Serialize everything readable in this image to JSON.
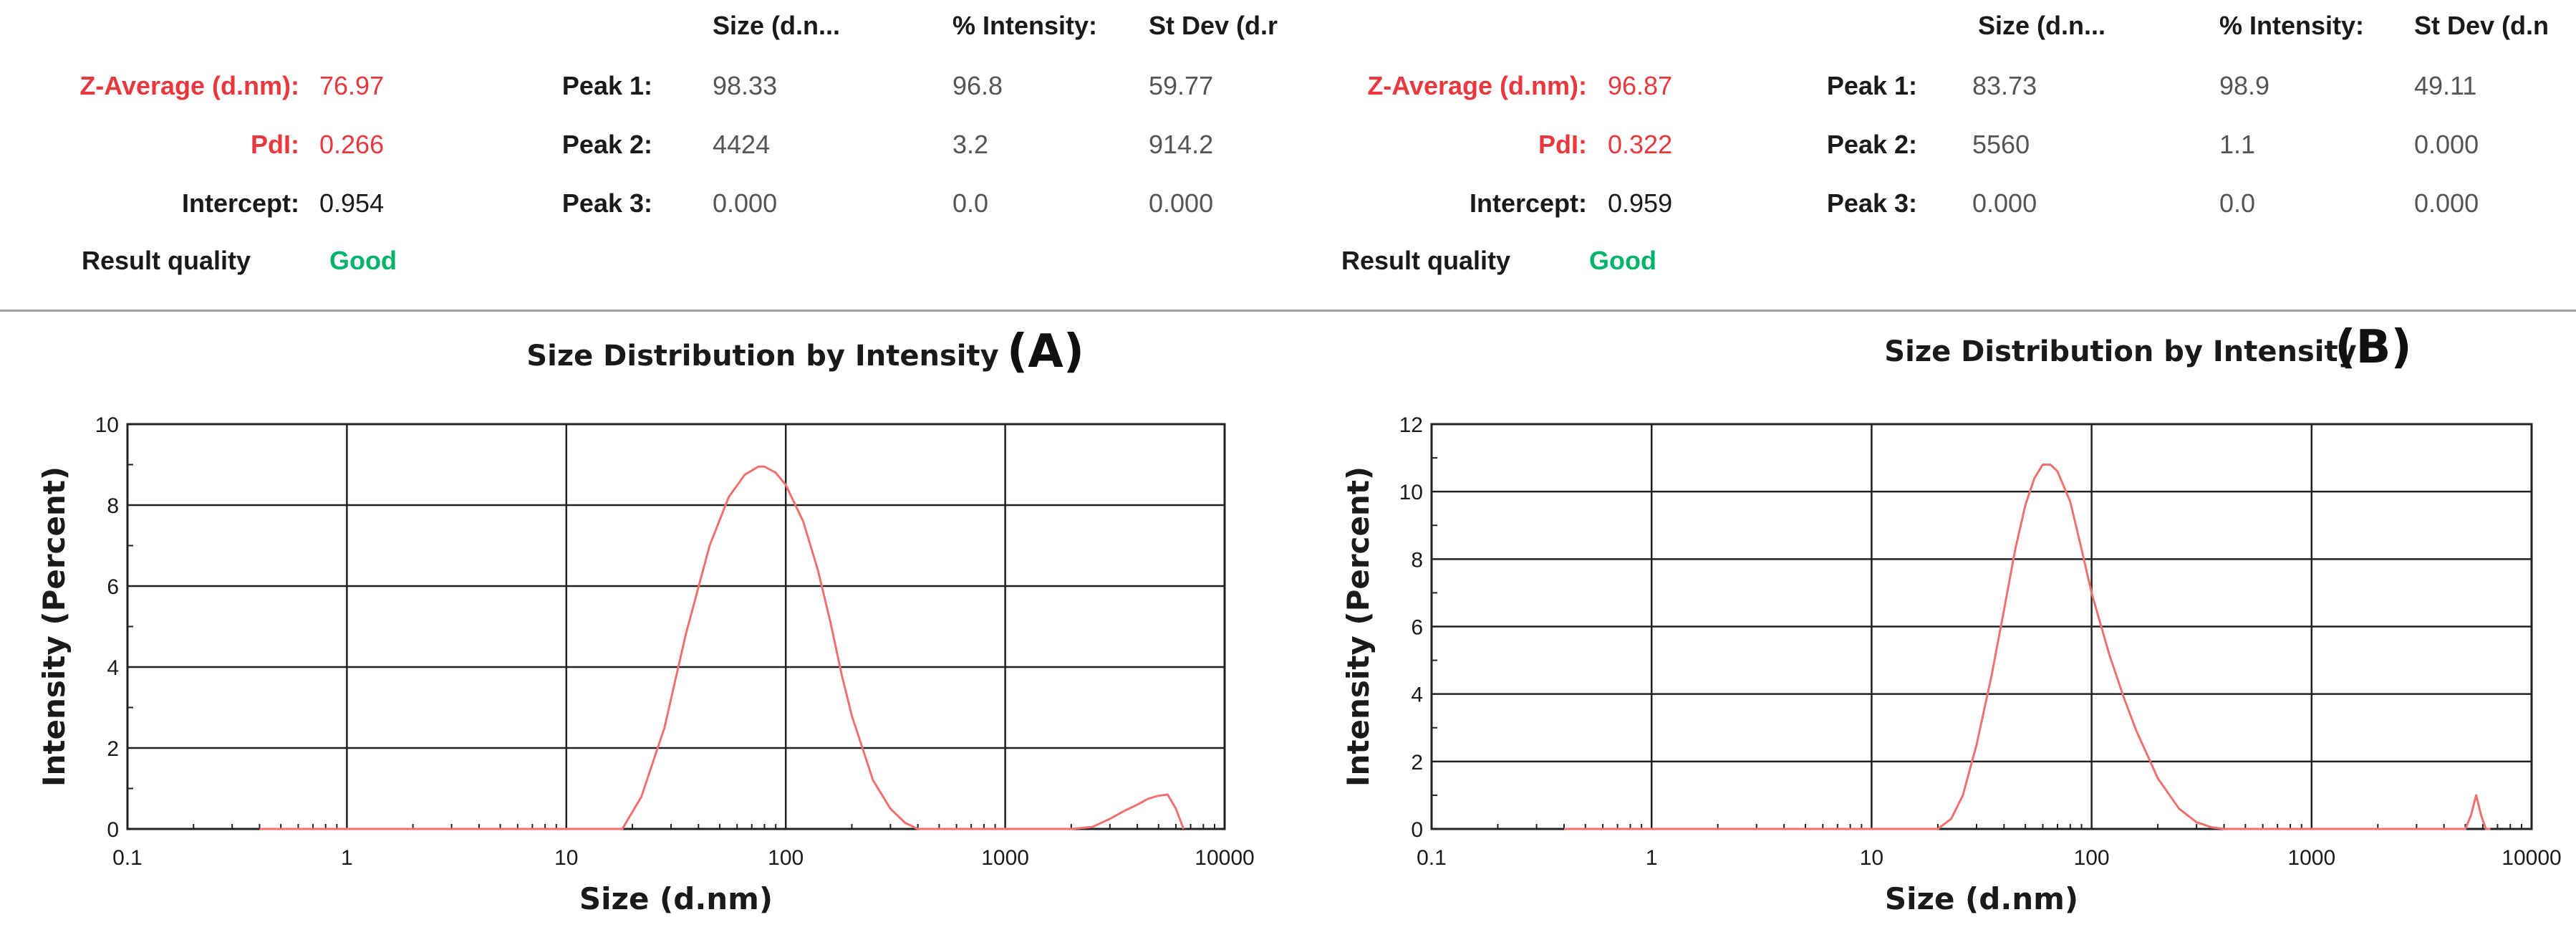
{
  "headers": {
    "size": "Size (d.n...",
    "intensity": "% Intensity:",
    "stdev_a": "St Dev (d.r",
    "stdev_b": "St Dev (d.n"
  },
  "labels": {
    "z_average": "Z-Average (d.nm):",
    "pdi": "PdI:",
    "intercept": "Intercept:",
    "result_quality": "Result quality",
    "peak1": "Peak 1:",
    "peak2": "Peak 2:",
    "peak3": "Peak 3:"
  },
  "results": [
    {
      "z_average": "76.97",
      "pdi": "0.266",
      "intercept": "0.954",
      "quality": "Good",
      "peaks": [
        {
          "size": "98.33",
          "intensity": "96.8",
          "stdev": "59.77"
        },
        {
          "size": "4424",
          "intensity": "3.2",
          "stdev": "914.2"
        },
        {
          "size": "0.000",
          "intensity": "0.0",
          "stdev": "0.000"
        }
      ]
    },
    {
      "z_average": "96.87",
      "pdi": "0.322",
      "intercept": "0.959",
      "quality": "Good",
      "peaks": [
        {
          "size": "83.73",
          "intensity": "98.9",
          "stdev": "49.11"
        },
        {
          "size": "5560",
          "intensity": "1.1",
          "stdev": "0.000"
        },
        {
          "size": "0.000",
          "intensity": "0.0",
          "stdev": "0.000"
        }
      ]
    }
  ],
  "colors": {
    "curve": "#f07070",
    "label_red": "#e8383d",
    "good": "#00b36b",
    "grid": "#222222"
  },
  "chart_data": [
    {
      "type": "line",
      "title": "Size Distribution by Intensity",
      "panel_letter": "(A)",
      "xlabel": "Size (d.nm)",
      "ylabel": "Intensity (Percent)",
      "xscale": "log",
      "xlim": [
        0.1,
        10000
      ],
      "ylim": [
        0,
        10
      ],
      "xticks": [
        0.1,
        1,
        10,
        100,
        1000,
        10000
      ],
      "xtick_labels": [
        "0.1",
        "1",
        "10",
        "100",
        "1000",
        "10000"
      ],
      "yticks": [
        0,
        2,
        4,
        6,
        8,
        10
      ],
      "ytick_labels": [
        "0",
        "2",
        "4",
        "6",
        "8",
        "10"
      ],
      "grid": true,
      "series": [
        {
          "x": [
            0.4,
            10,
            18,
            22,
            28,
            35,
            45,
            55,
            65,
            75,
            80,
            90,
            100,
            120,
            140,
            160,
            180,
            200,
            250,
            300,
            350,
            400,
            600,
            1000,
            2000,
            2500,
            3000,
            3500,
            4000,
            4500,
            5000,
            5500,
            6000,
            6500
          ],
          "y": [
            0,
            0,
            0,
            0.8,
            2.5,
            4.8,
            7.0,
            8.2,
            8.75,
            8.95,
            8.95,
            8.8,
            8.5,
            7.6,
            6.4,
            5.1,
            3.8,
            2.8,
            1.2,
            0.5,
            0.15,
            0,
            0,
            0,
            0,
            0.05,
            0.25,
            0.45,
            0.6,
            0.75,
            0.82,
            0.85,
            0.5,
            0
          ]
        }
      ]
    },
    {
      "type": "line",
      "title": "Size Distribution by Intensity",
      "panel_letter": "(B)",
      "xlabel": "Size (d.nm)",
      "ylabel": "Intensity (Percent)",
      "xscale": "log",
      "xlim": [
        0.1,
        10000
      ],
      "ylim": [
        0,
        12
      ],
      "xticks": [
        0.1,
        1,
        10,
        100,
        1000,
        10000
      ],
      "xtick_labels": [
        "0.1",
        "1",
        "10",
        "100",
        "1000",
        "10000"
      ],
      "yticks": [
        0,
        2,
        4,
        6,
        8,
        10,
        12
      ],
      "ytick_labels": [
        "0",
        "2",
        "4",
        "6",
        "8",
        "10",
        "12"
      ],
      "grid": true,
      "series": [
        {
          "x": [
            0.4,
            10,
            20,
            23,
            26,
            30,
            35,
            40,
            45,
            50,
            55,
            60,
            65,
            70,
            80,
            90,
            100,
            120,
            140,
            160,
            200,
            250,
            300,
            350,
            400,
            1000,
            5000,
            5300,
            5600,
            5900,
            6200,
            6500
          ],
          "y": [
            0,
            0,
            0,
            0.3,
            1.0,
            2.5,
            4.5,
            6.5,
            8.3,
            9.6,
            10.4,
            10.8,
            10.8,
            10.6,
            9.7,
            8.3,
            7.0,
            5.2,
            3.9,
            2.9,
            1.5,
            0.6,
            0.2,
            0.05,
            0,
            0,
            0,
            0.4,
            1.0,
            0.4,
            0,
            0
          ]
        }
      ]
    }
  ]
}
